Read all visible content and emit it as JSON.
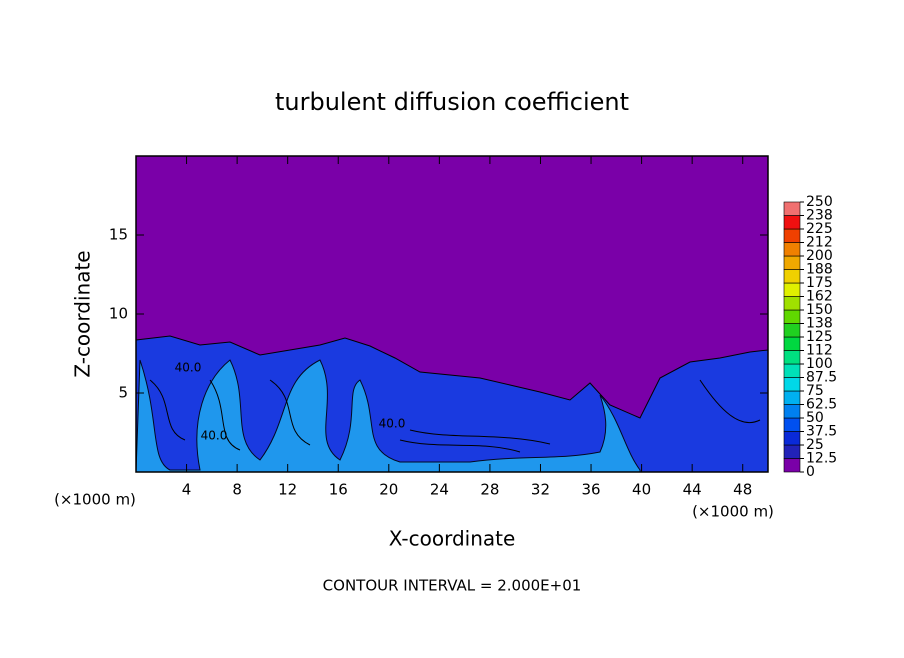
{
  "chart_data": {
    "type": "contour",
    "title": "turbulent diffusion coefficient",
    "x_label": "X-coordinate",
    "y_label": "Z-coordinate",
    "x_unit_label_left": "(×1000 m)",
    "x_unit_label_right": "(×1000 m)",
    "footer": "CONTOUR INTERVAL = 2.000E+01",
    "contour_labels": [
      "40.0",
      "40.0",
      "40.0"
    ],
    "xlim": [
      0,
      50
    ],
    "ylim": [
      0,
      20
    ],
    "xticks": [
      4,
      8,
      12,
      16,
      20,
      24,
      28,
      32,
      36,
      40,
      44,
      48
    ],
    "yticks": [
      5,
      10,
      15
    ],
    "colorbar": {
      "levels": [
        0,
        12.5,
        25,
        37.5,
        50,
        62.5,
        75,
        87.5,
        100,
        {
          "value": 112.5,
          "label": "112"
        },
        125,
        {
          "value": 137.5,
          "label": "138"
        },
        150,
        {
          "value": 162.5,
          "label": "162"
        },
        175,
        {
          "value": 187.5,
          "label": "188"
        },
        200,
        {
          "value": 212.5,
          "label": "212"
        },
        225,
        {
          "value": 237.5,
          "label": "238"
        },
        250
      ],
      "colors": [
        "#7a00a8",
        "#2222b8",
        "#0a2ad8",
        "#0050f0",
        "#0080f0",
        "#00b0f0",
        "#00d8e8",
        "#00e0b8",
        "#00e080",
        "#00d840",
        "#20d020",
        "#60d800",
        "#a0e000",
        "#e0f000",
        "#f0d000",
        "#f0a800",
        "#f08000",
        "#f04000",
        "#f01010",
        "#f07070"
      ]
    }
  }
}
